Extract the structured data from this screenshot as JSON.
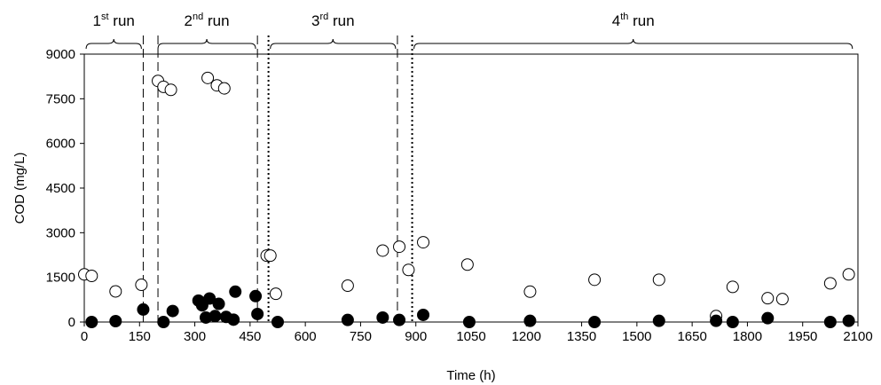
{
  "chart_data": {
    "type": "scatter",
    "title": "",
    "xlabel": "Time (h)",
    "ylabel": "COD (mg/L)",
    "xlim": [
      0,
      2100
    ],
    "ylim": [
      0,
      9000
    ],
    "x_ticks": [
      "0",
      "150",
      "300",
      "450",
      "600",
      "750",
      "900",
      "1050",
      "1200",
      "1350",
      "1500",
      "1650",
      "1800",
      "1950",
      "2100"
    ],
    "y_ticks": [
      "0",
      "1500",
      "3000",
      "4500",
      "6000",
      "7500",
      "9000"
    ],
    "grid": false,
    "legend": "none",
    "series": [
      {
        "marker": "open-circle",
        "color": "#000000",
        "x": [
          0,
          20,
          85,
          155,
          200,
          215,
          235,
          335,
          360,
          380,
          495,
          505,
          520,
          715,
          810,
          855,
          880,
          920,
          1040,
          1210,
          1385,
          1560,
          1715,
          1760,
          1855,
          1895,
          2025,
          2075
        ],
        "y": [
          1600,
          1550,
          1030,
          1250,
          8100,
          7900,
          7800,
          8200,
          7950,
          7850,
          2230,
          2230,
          950,
          1220,
          2400,
          2530,
          1750,
          2680,
          1930,
          1020,
          1420,
          1420,
          200,
          1180,
          800,
          770,
          1300,
          1600
        ]
      },
      {
        "marker": "filled-circle",
        "color": "#000000",
        "x": [
          20,
          85,
          160,
          215,
          240,
          310,
          320,
          330,
          340,
          355,
          365,
          385,
          405,
          410,
          465,
          470,
          525,
          715,
          810,
          855,
          920,
          1045,
          1210,
          1385,
          1560,
          1715,
          1760,
          1855,
          2025,
          2075
        ],
        "y": [
          0,
          30,
          420,
          0,
          370,
          720,
          560,
          150,
          790,
          200,
          610,
          170,
          80,
          1020,
          870,
          270,
          0,
          70,
          150,
          70,
          240,
          0,
          40,
          0,
          40,
          40,
          0,
          130,
          0,
          40
        ]
      }
    ],
    "dividers": [
      {
        "x": 160,
        "style": "dashed"
      },
      {
        "x": 200,
        "style": "dashed"
      },
      {
        "x": 470,
        "style": "dashed"
      },
      {
        "x": 500,
        "style": "dotted"
      },
      {
        "x": 850,
        "style": "dashed"
      },
      {
        "x": 890,
        "style": "dotted"
      }
    ],
    "runs": [
      {
        "label": "1",
        "sup": "st",
        "suffix": " run",
        "x_start": 5,
        "x_end": 155
      },
      {
        "label": "2",
        "sup": "nd",
        "suffix": " run",
        "x_start": 200,
        "x_end": 465
      },
      {
        "label": "3",
        "sup": "rd",
        "suffix": " run",
        "x_start": 505,
        "x_end": 845
      },
      {
        "label": "4",
        "sup": "th",
        "suffix": " run",
        "x_start": 895,
        "x_end": 2085
      }
    ]
  }
}
